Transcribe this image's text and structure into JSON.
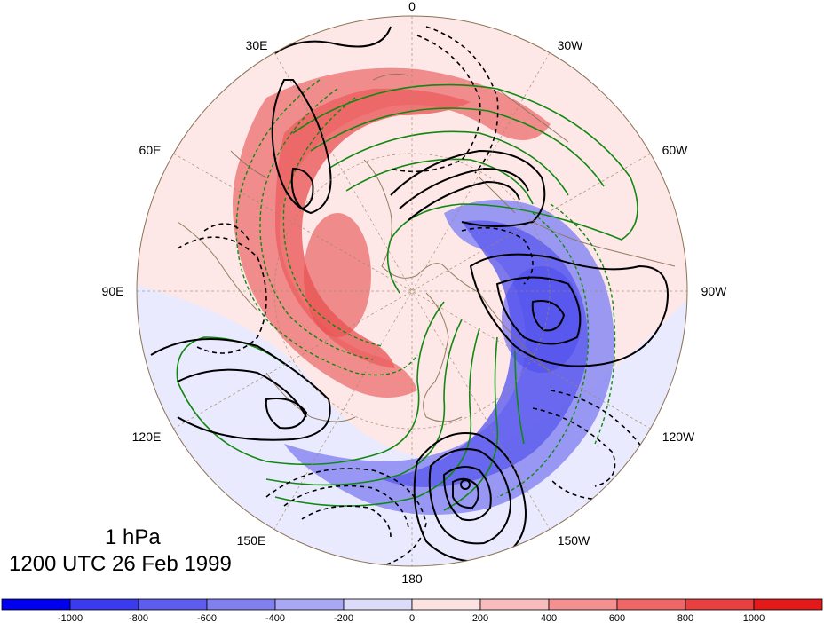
{
  "map": {
    "lon_labels": [
      "0",
      "30W",
      "60W",
      "90W",
      "120W",
      "150W",
      "180",
      "150E",
      "120E",
      "90E",
      "60E",
      "30E"
    ],
    "colors": {
      "positive": "#ee5555",
      "negative": "#5555ee",
      "green_contour": "#118811",
      "black_contour": "#000000",
      "coast": "#8b7355",
      "background_positive": "#fde7e7",
      "background_negative": "#eaeaff"
    }
  },
  "title": {
    "level": "1 hPa",
    "time": "1200 UTC 26 Feb 1999"
  },
  "colorbar": {
    "colors": [
      "#0000ee",
      "#3a3aee",
      "#5c5cee",
      "#8080ee",
      "#a8a8f4",
      "#dcdcfa",
      "#fde2e2",
      "#f8bcbc",
      "#f49090",
      "#ee6666",
      "#e84040",
      "#e41a1a"
    ],
    "ticks": [
      "-1000",
      "-800",
      "-600",
      "-400",
      "-200",
      "0",
      "200",
      "400",
      "600",
      "800",
      "1000"
    ]
  }
}
